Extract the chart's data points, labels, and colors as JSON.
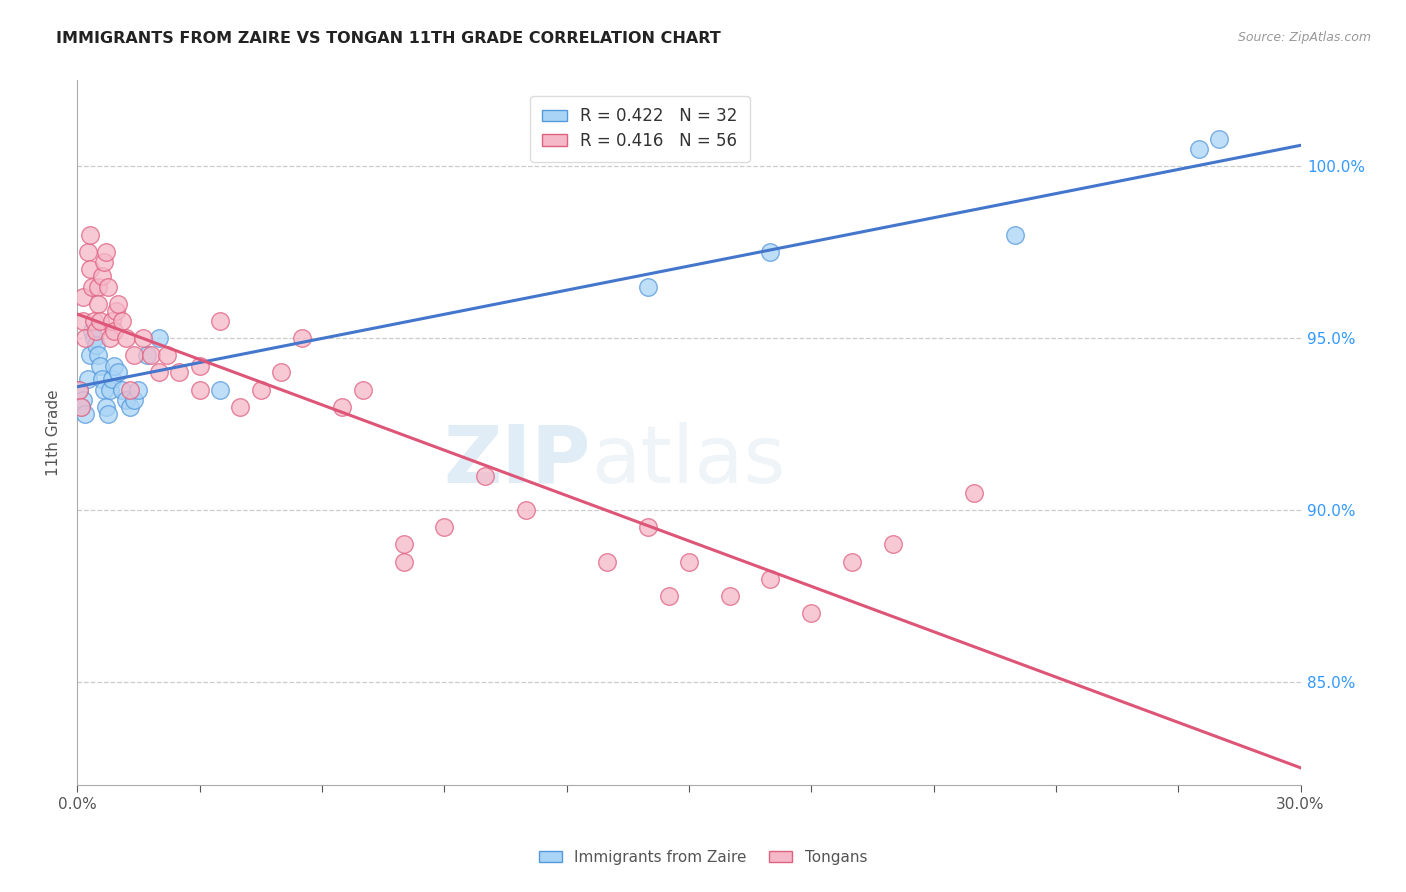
{
  "title": "IMMIGRANTS FROM ZAIRE VS TONGAN 11TH GRADE CORRELATION CHART",
  "source": "Source: ZipAtlas.com",
  "ylabel": "11th Grade",
  "right_yticks": [
    85.0,
    90.0,
    95.0,
    100.0
  ],
  "xlim": [
    0.0,
    30.0
  ],
  "ylim": [
    82.0,
    102.5
  ],
  "blue_R": 0.422,
  "blue_N": 32,
  "pink_R": 0.416,
  "pink_N": 56,
  "blue_color": "#aad4f5",
  "pink_color": "#f5b8c8",
  "blue_edge_color": "#5599dd",
  "pink_edge_color": "#e06080",
  "blue_line_color": "#4477cc",
  "pink_line_color": "#dd5577",
  "watermark_zip": "ZIP",
  "watermark_atlas": "atlas",
  "blue_x": [
    0.05,
    0.1,
    0.15,
    0.2,
    0.25,
    0.3,
    0.35,
    0.4,
    0.45,
    0.5,
    0.55,
    0.6,
    0.65,
    0.7,
    0.75,
    0.8,
    0.85,
    0.9,
    1.0,
    1.1,
    1.2,
    1.3,
    1.4,
    1.5,
    1.7,
    2.0,
    3.5,
    14.0,
    17.0,
    23.0,
    27.5,
    28.0
  ],
  "blue_y": [
    93.5,
    93.0,
    93.2,
    92.8,
    93.8,
    94.5,
    95.2,
    95.0,
    94.8,
    94.5,
    94.2,
    93.8,
    93.5,
    93.0,
    92.8,
    93.5,
    93.8,
    94.2,
    94.0,
    93.5,
    93.2,
    93.0,
    93.2,
    93.5,
    94.5,
    95.0,
    93.5,
    96.5,
    97.5,
    98.0,
    100.5,
    100.8
  ],
  "pink_x": [
    0.05,
    0.1,
    0.15,
    0.15,
    0.2,
    0.25,
    0.3,
    0.3,
    0.35,
    0.4,
    0.45,
    0.5,
    0.5,
    0.55,
    0.6,
    0.65,
    0.7,
    0.75,
    0.8,
    0.85,
    0.9,
    0.95,
    1.0,
    1.1,
    1.2,
    1.3,
    1.4,
    1.6,
    1.8,
    2.0,
    2.2,
    2.5,
    3.0,
    3.0,
    3.5,
    4.0,
    4.5,
    5.0,
    5.5,
    6.5,
    7.0,
    8.0,
    8.0,
    9.0,
    10.0,
    11.0,
    13.0,
    14.0,
    14.5,
    15.0,
    16.0,
    17.0,
    18.0,
    19.0,
    20.0,
    22.0
  ],
  "pink_y": [
    93.5,
    93.0,
    95.5,
    96.2,
    95.0,
    97.5,
    97.0,
    98.0,
    96.5,
    95.5,
    95.2,
    96.5,
    96.0,
    95.5,
    96.8,
    97.2,
    97.5,
    96.5,
    95.0,
    95.5,
    95.2,
    95.8,
    96.0,
    95.5,
    95.0,
    93.5,
    94.5,
    95.0,
    94.5,
    94.0,
    94.5,
    94.0,
    93.5,
    94.2,
    95.5,
    93.0,
    93.5,
    94.0,
    95.0,
    93.0,
    93.5,
    88.5,
    89.0,
    89.5,
    91.0,
    90.0,
    88.5,
    89.5,
    87.5,
    88.5,
    87.5,
    88.0,
    87.0,
    88.5,
    89.0,
    90.5
  ]
}
